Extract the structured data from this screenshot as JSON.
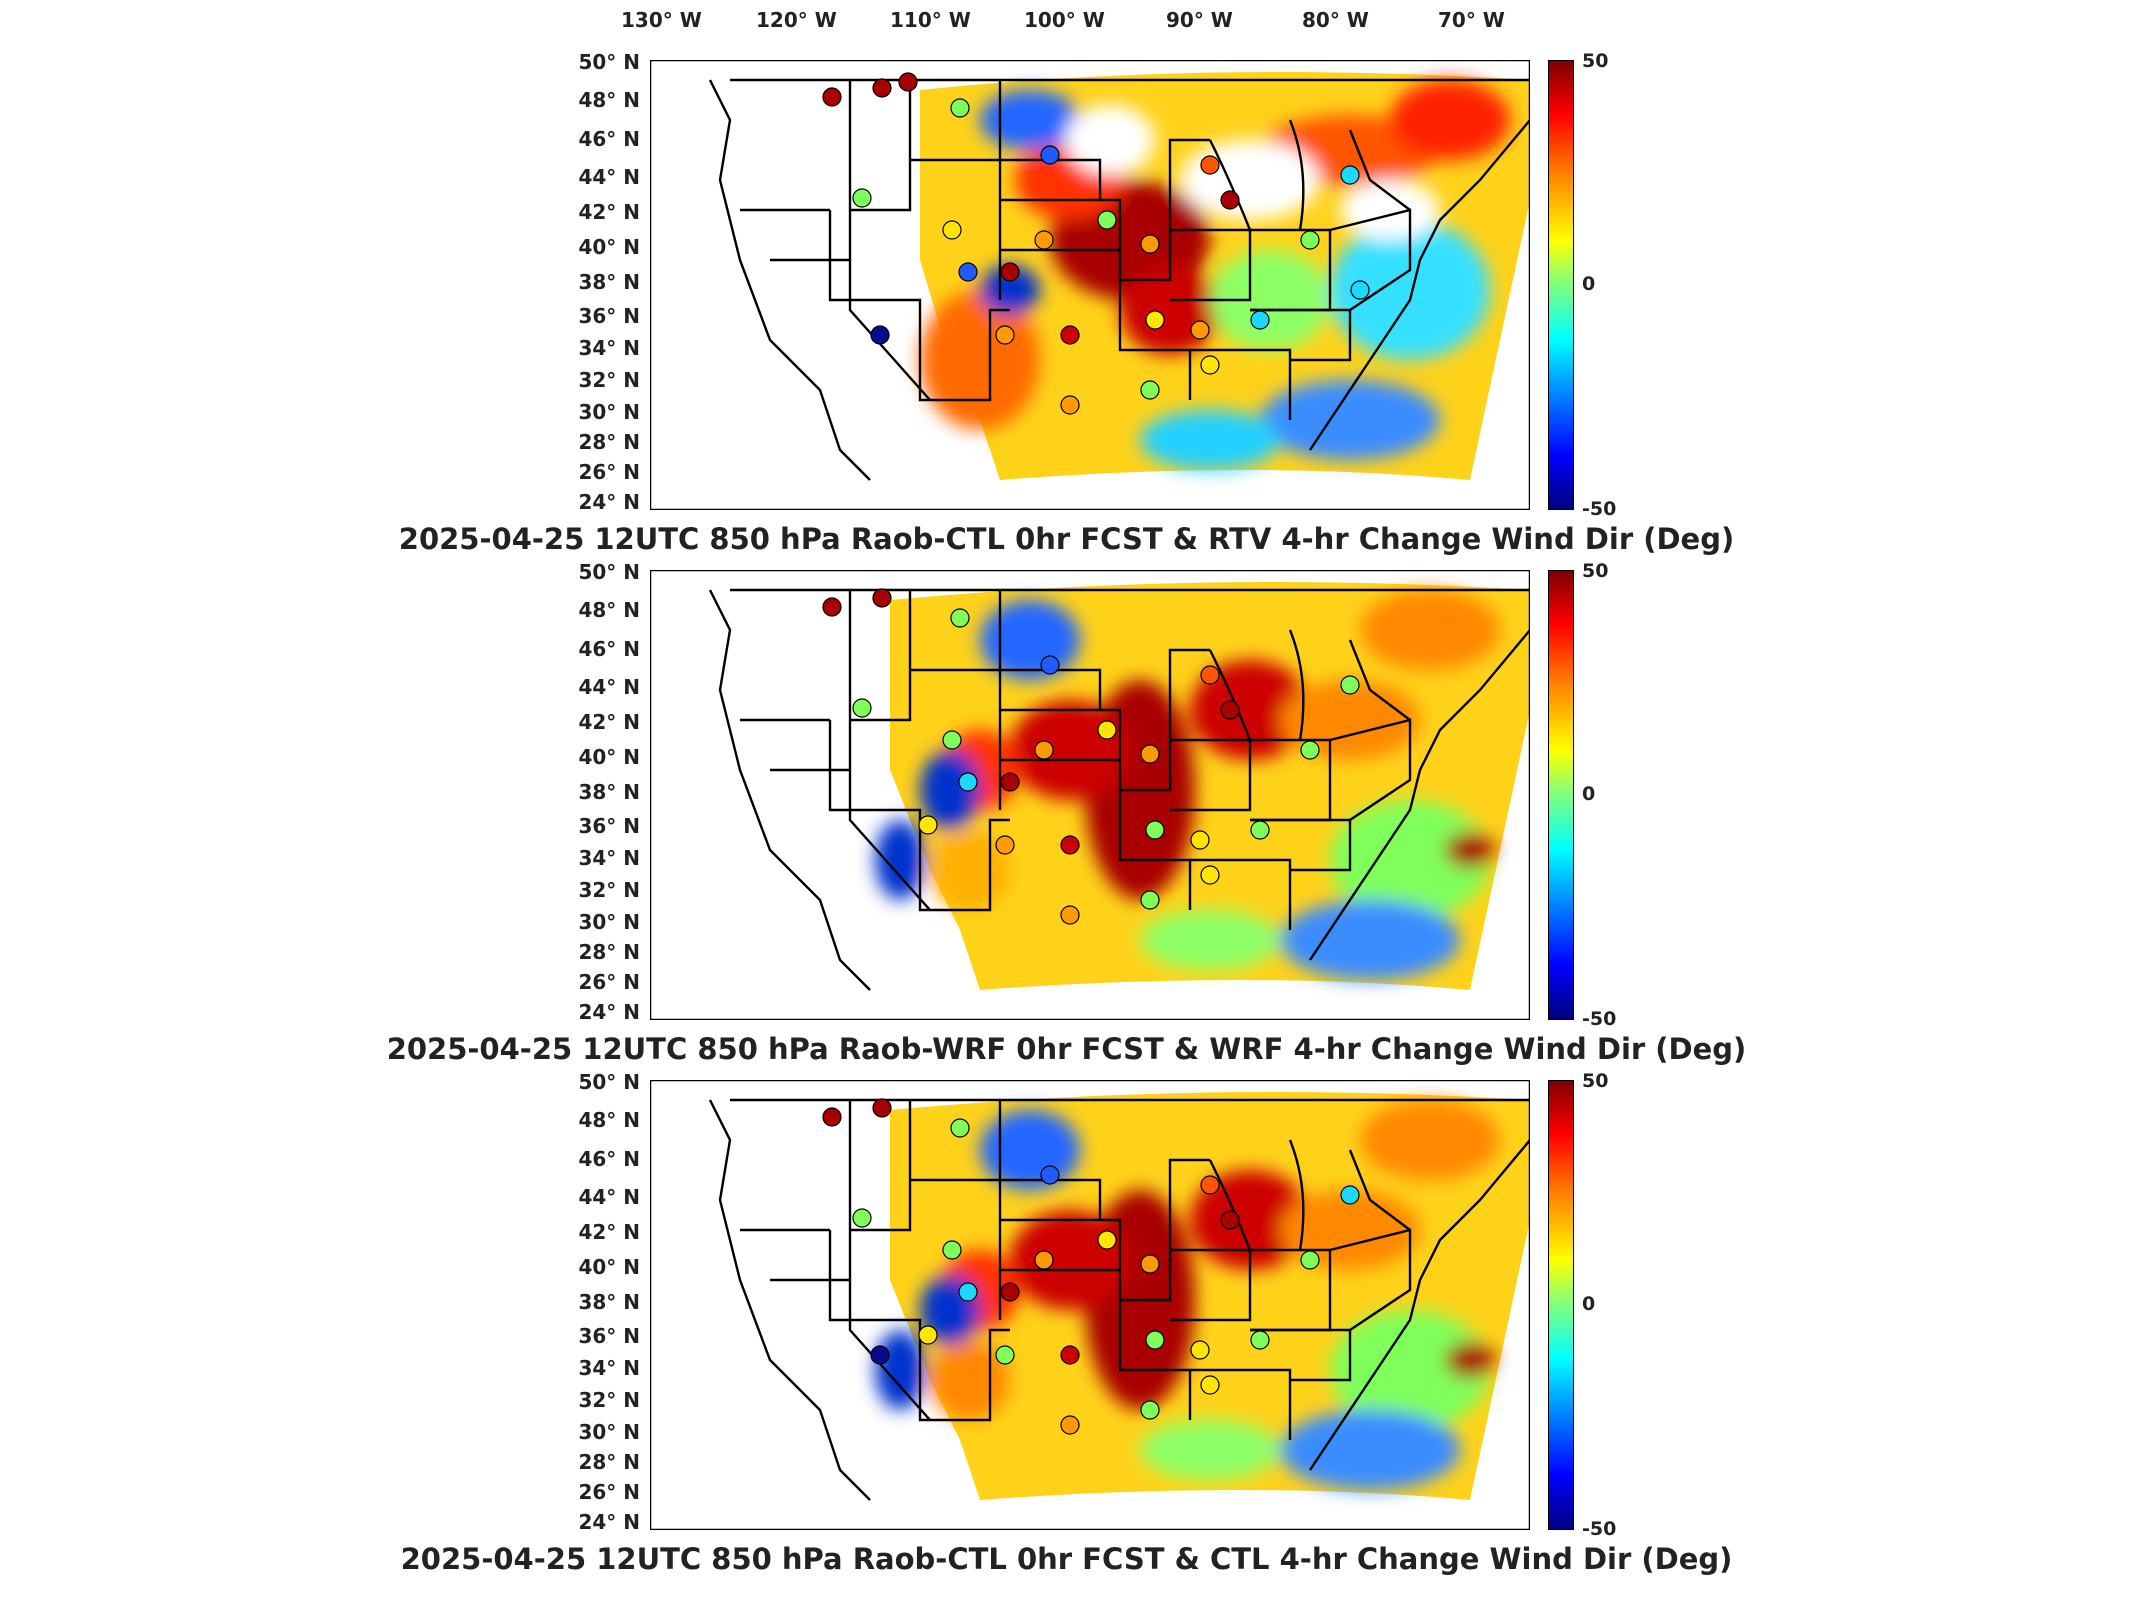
{
  "lon_labels": [
    "130° W",
    "120° W",
    "110° W",
    "100° W",
    "90° W",
    "80° W",
    "70° W"
  ],
  "lat_labels": [
    "50° N",
    "48° N",
    "46° N",
    "44° N",
    "42° N",
    "40° N",
    "38° N",
    "36° N",
    "34° N",
    "32° N",
    "30° N",
    "28° N",
    "26° N",
    "24° N"
  ],
  "colorbar": {
    "max_label": "50",
    "mid_label": "0",
    "min_label": "-50",
    "range": [
      -50,
      50
    ],
    "colormap": "jet"
  },
  "panels": [
    {
      "title": "2025-04-25 12UTC 850 hPa Raob-CTL 0hr FCST & RTV 4-hr Change Wind Dir (Deg)"
    },
    {
      "title": "2025-04-25 12UTC 850 hPa Raob-WRF 0hr FCST & WRF 4-hr Change Wind Dir (Deg)"
    },
    {
      "title": "2025-04-25 12UTC 850 hPa Raob-CTL 0hr FCST & CTL 4-hr Change Wind Dir (Deg)"
    }
  ],
  "colors": {
    "dark_red": "#a80000",
    "red": "#ff2a00",
    "orange": "#ff9a00",
    "yellow": "#ffe600",
    "green": "#7fff5a",
    "cyan": "#19d9ff",
    "blue": "#1f5bff",
    "dark_blue": "#0a0a8a"
  }
}
